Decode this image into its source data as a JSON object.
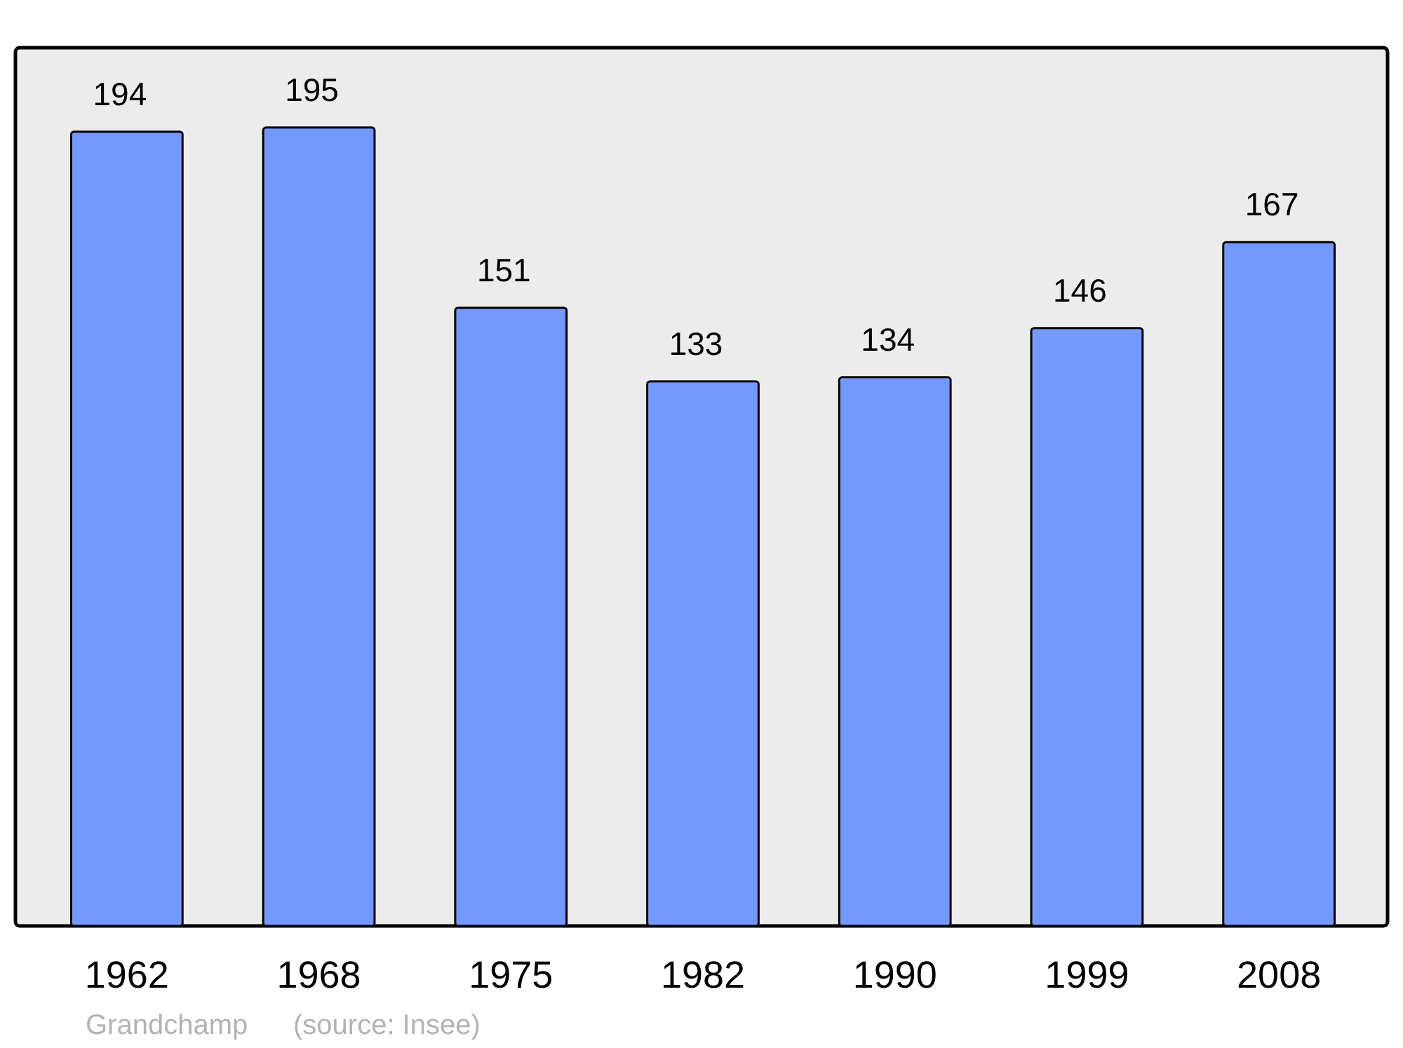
{
  "chart_data": {
    "type": "bar",
    "categories": [
      "1962",
      "1968",
      "1975",
      "1982",
      "1990",
      "1999",
      "2008"
    ],
    "values": [
      194,
      195,
      151,
      133,
      134,
      146,
      167
    ],
    "color": "#7399ff",
    "data_labels": true,
    "annotations": [
      "Grandchamp",
      "(source: Insee)"
    ]
  }
}
